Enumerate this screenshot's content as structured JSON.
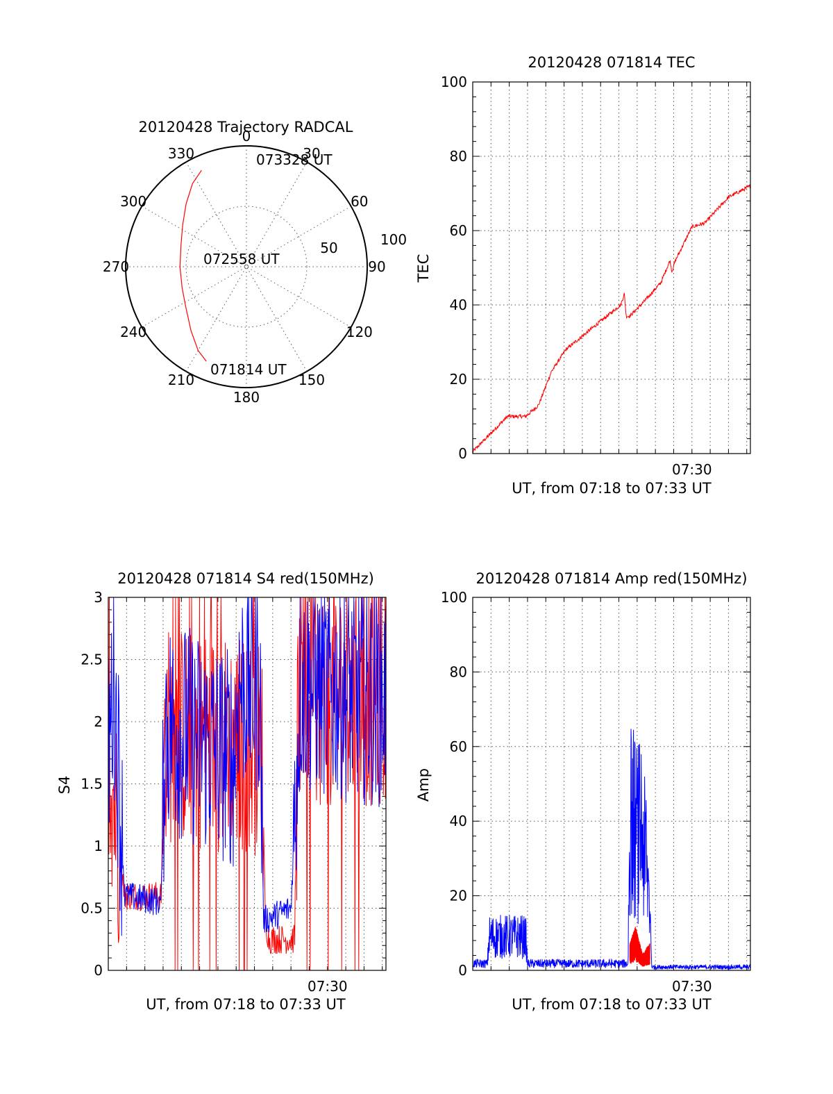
{
  "colors": {
    "red": "#ff0000",
    "blue": "#0000ff",
    "axis": "#000000"
  },
  "chart_data": [
    {
      "id": "trajectory",
      "type": "polar",
      "title": "20120428 Trajectory RADCAL",
      "angle_labels": [
        "0",
        "30",
        "60",
        "90",
        "120",
        "150",
        "180",
        "210",
        "240",
        "270",
        "300",
        "330"
      ],
      "radial_labels": [
        "50",
        "100"
      ],
      "rlim": [
        0,
        100
      ],
      "start_label": "071814 UT",
      "mid_label": "072558 UT",
      "end_label": "073328 UT",
      "series": [
        {
          "color": "red",
          "points_az_zen": [
            [
              203,
              85
            ],
            [
              210,
              80
            ],
            [
              221,
              70
            ],
            [
              237,
              60
            ],
            [
              252,
              56
            ],
            [
              270,
              55
            ],
            [
              288,
              57
            ],
            [
              303,
              63
            ],
            [
              316,
              72
            ],
            [
              327,
              82
            ],
            [
              335,
              88
            ]
          ]
        }
      ]
    },
    {
      "id": "tec",
      "type": "line",
      "title": "20120428 071814 TEC",
      "ylabel": "TEC",
      "xlabel": "UT, from 07:18 to 07:33 UT",
      "xtick_labels": [
        "07:30"
      ],
      "xlim_min": [
        0,
        15.2
      ],
      "ylim": [
        0,
        100
      ],
      "yticks": [
        0,
        20,
        40,
        60,
        80,
        100
      ],
      "series": [
        {
          "color": "red",
          "x": [
            0.0,
            0.9,
            1.9,
            2.9,
            3.6,
            4.3,
            5.1,
            6.1,
            7.1,
            8.1,
            8.3,
            8.4,
            8.6,
            9.4,
            10.3,
            10.8,
            10.9,
            11.1,
            12.0,
            12.7,
            14.0,
            15.2
          ],
          "y": [
            0.5,
            5,
            10,
            10,
            13,
            22,
            28,
            32,
            36,
            40,
            43,
            37,
            37,
            41,
            46,
            52,
            49,
            52,
            61,
            62,
            69,
            72
          ]
        }
      ]
    },
    {
      "id": "s4",
      "type": "line",
      "title": "20120428 071814 S4 red(150MHz)",
      "ylabel": "S4",
      "xlabel": "UT, from 07:18 to 07:33 UT",
      "xtick_labels": [
        "07:30"
      ],
      "xlim_min": [
        0,
        15.2
      ],
      "ylim": [
        0,
        3
      ],
      "ytick_labels": [
        "0",
        "0.5",
        "1",
        "1.5",
        "2",
        "2.5",
        "3"
      ],
      "series": [
        {
          "name": "red",
          "color": "red",
          "level_x": [
            0,
            0.9,
            2.9,
            3.1,
            8.4,
            8.6,
            8.8,
            10.2,
            10.4,
            15.2
          ],
          "level_y": [
            1.8,
            0.6,
            0.6,
            1.9,
            1.8,
            0.4,
            0.25,
            0.25,
            2.2,
            2.2
          ]
        },
        {
          "name": "blue",
          "color": "blue",
          "level_x": [
            0,
            0.3,
            0.9,
            2.9,
            3.1,
            6.9,
            7.1,
            8.3,
            8.5,
            10.0,
            10.5,
            15.2
          ],
          "level_y": [
            1.7,
            2.4,
            0.6,
            0.55,
            2.0,
            1.7,
            2.3,
            2.3,
            0.4,
            0.5,
            2.3,
            2.2
          ]
        }
      ]
    },
    {
      "id": "amp",
      "type": "line",
      "title": "20120428 071814 Amp red(150MHz)",
      "ylabel": "Amp",
      "xlabel": "UT, from 07:18 to 07:33 UT",
      "xtick_labels": [
        "07:30"
      ],
      "xlim_min": [
        0,
        15.2
      ],
      "ylim": [
        0,
        100
      ],
      "yticks": [
        0,
        20,
        40,
        60,
        80,
        100
      ],
      "series": [
        {
          "name": "blue",
          "color": "blue",
          "level_x": [
            0,
            0.8,
            0.9,
            2.9,
            3.0,
            8.5,
            8.6,
            9.1,
            9.2,
            9.7,
            9.8,
            15.2
          ],
          "level_y": [
            2,
            2,
            10,
            10,
            2,
            2,
            45,
            40,
            45,
            20,
            1,
            1
          ]
        },
        {
          "name": "red",
          "color": "red",
          "level_x": [
            8.6,
            8.9,
            9.3,
            9.7
          ],
          "level_y": [
            5,
            8,
            3,
            5
          ]
        }
      ]
    }
  ]
}
